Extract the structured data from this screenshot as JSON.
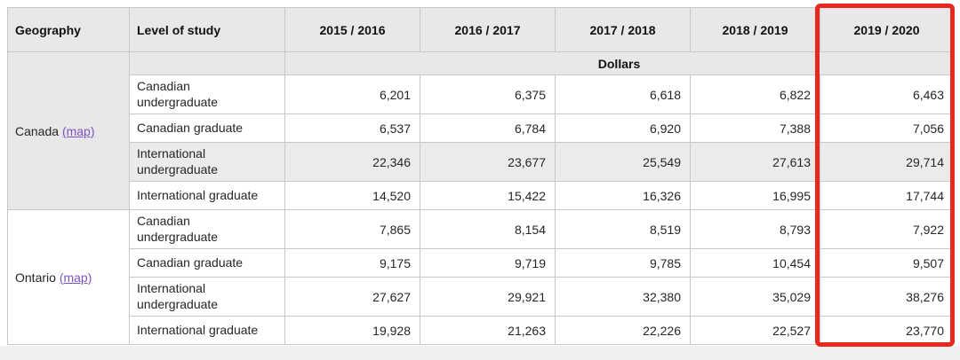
{
  "table": {
    "header": {
      "geography": "Geography",
      "level_of_study": "Level of study",
      "years": [
        "2015 / 2016",
        "2016 / 2017",
        "2017 / 2018",
        "2018 / 2019",
        "2019 / 2020"
      ]
    },
    "unit_row_label": "Dollars",
    "groups": [
      {
        "name": "Canada",
        "map_label": "(map)",
        "rows": [
          {
            "level": "Canadian undergraduate",
            "values": [
              "6,201",
              "6,375",
              "6,618",
              "6,822",
              "6,463"
            ]
          },
          {
            "level": "Canadian graduate",
            "values": [
              "6,537",
              "6,784",
              "6,920",
              "7,388",
              "7,056"
            ]
          },
          {
            "level": "International undergraduate",
            "values": [
              "22,346",
              "23,677",
              "25,549",
              "27,613",
              "29,714"
            ]
          },
          {
            "level": "International graduate",
            "values": [
              "14,520",
              "15,422",
              "16,326",
              "16,995",
              "17,744"
            ]
          }
        ]
      },
      {
        "name": "Ontario",
        "map_label": "(map)",
        "rows": [
          {
            "level": "Canadian undergraduate",
            "values": [
              "7,865",
              "8,154",
              "8,519",
              "8,793",
              "7,922"
            ]
          },
          {
            "level": "Canadian graduate",
            "values": [
              "9,175",
              "9,719",
              "9,785",
              "10,454",
              "9,507"
            ]
          },
          {
            "level": "International undergraduate",
            "values": [
              "27,627",
              "29,921",
              "32,380",
              "35,029",
              "38,276"
            ]
          },
          {
            "level": "International graduate",
            "values": [
              "19,928",
              "21,263",
              "22,226",
              "22,527",
              "23,770"
            ]
          }
        ]
      }
    ]
  },
  "highlight": {
    "highlighted_column": "2019 / 2020",
    "border_color": "#e8271f"
  },
  "colors": {
    "header_bg": "#e8e8e8",
    "unit_row_bg": "#e8e8e8",
    "highlight_row_bg": "#ebebeb",
    "cell_border": "#c8c8c8",
    "link_purple": "#7b52c1",
    "bottom_band": "#f0f0f0"
  }
}
